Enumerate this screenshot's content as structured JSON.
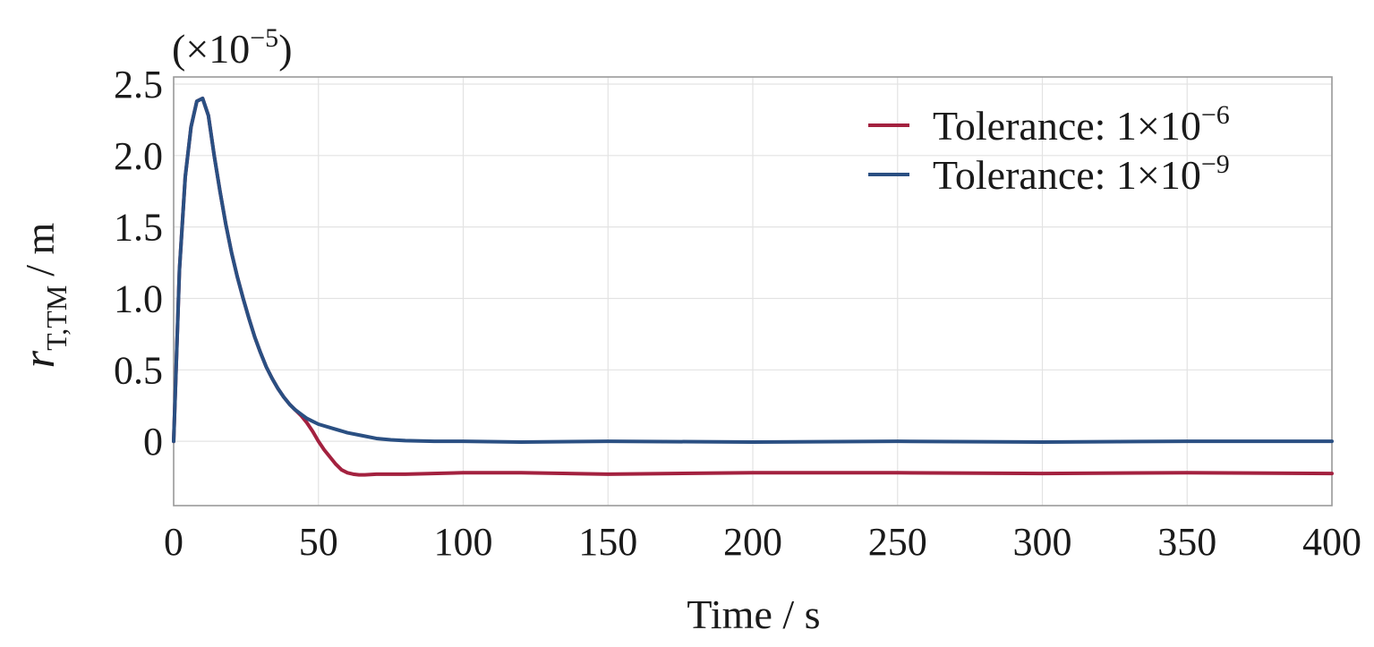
{
  "chart_data": {
    "type": "line",
    "xlabel": "Time / s",
    "ylabel": {
      "main": "r",
      "subscript": "T,TM",
      "unit": "/ m"
    },
    "y_multiplier": {
      "prefix": "(×10",
      "exponent": "−5",
      "suffix": ")"
    },
    "xlim": [
      0,
      400
    ],
    "ylim": [
      -0.45,
      2.55
    ],
    "x_ticks": [
      0,
      50,
      100,
      150,
      200,
      250,
      300,
      350,
      400
    ],
    "x_tick_labels": [
      "0",
      "50",
      "100",
      "150",
      "200",
      "250",
      "300",
      "350",
      "400"
    ],
    "y_ticks": [
      0,
      0.5,
      1.0,
      1.5,
      2.0,
      2.5
    ],
    "y_tick_labels": [
      "0",
      "0.5",
      "1.0",
      "1.5",
      "2.0",
      "2.5"
    ],
    "grid": true,
    "legend_position": "top-right",
    "series": [
      {
        "name": "Tolerance: 1×10",
        "exponent": "−6",
        "color": "#a3213f",
        "x": [
          0,
          2,
          4,
          6,
          8,
          10,
          12,
          14,
          16,
          18,
          20,
          22,
          24,
          26,
          28,
          30,
          32,
          34,
          36,
          38,
          40,
          42,
          44,
          46,
          48,
          50,
          52,
          54,
          56,
          58,
          60,
          62,
          64,
          66,
          70,
          80,
          100,
          120,
          150,
          200,
          250,
          300,
          350,
          400
        ],
        "values": [
          0,
          1.2,
          1.85,
          2.2,
          2.38,
          2.4,
          2.28,
          2.0,
          1.75,
          1.52,
          1.32,
          1.15,
          1.0,
          0.86,
          0.73,
          0.62,
          0.52,
          0.44,
          0.37,
          0.31,
          0.26,
          0.22,
          0.18,
          0.13,
          0.07,
          0.0,
          -0.06,
          -0.11,
          -0.16,
          -0.2,
          -0.22,
          -0.23,
          -0.235,
          -0.235,
          -0.23,
          -0.23,
          -0.22,
          -0.22,
          -0.23,
          -0.22,
          -0.22,
          -0.225,
          -0.22,
          -0.225
        ]
      },
      {
        "name": "Tolerance: 1×10",
        "exponent": "−9",
        "color": "#2a4f82",
        "x": [
          0,
          2,
          4,
          6,
          8,
          10,
          12,
          14,
          16,
          18,
          20,
          22,
          24,
          26,
          28,
          30,
          32,
          34,
          36,
          38,
          40,
          42,
          44,
          46,
          48,
          50,
          55,
          60,
          65,
          70,
          75,
          80,
          90,
          100,
          120,
          150,
          200,
          250,
          300,
          350,
          400
        ],
        "values": [
          0,
          1.2,
          1.85,
          2.2,
          2.38,
          2.4,
          2.28,
          2.0,
          1.75,
          1.52,
          1.32,
          1.15,
          1.0,
          0.86,
          0.73,
          0.62,
          0.52,
          0.44,
          0.37,
          0.31,
          0.26,
          0.22,
          0.19,
          0.16,
          0.14,
          0.12,
          0.09,
          0.06,
          0.04,
          0.02,
          0.01,
          0.005,
          0.0,
          0.0,
          -0.005,
          0.0,
          -0.005,
          0.0,
          -0.005,
          0.0,
          0.0
        ]
      }
    ]
  }
}
